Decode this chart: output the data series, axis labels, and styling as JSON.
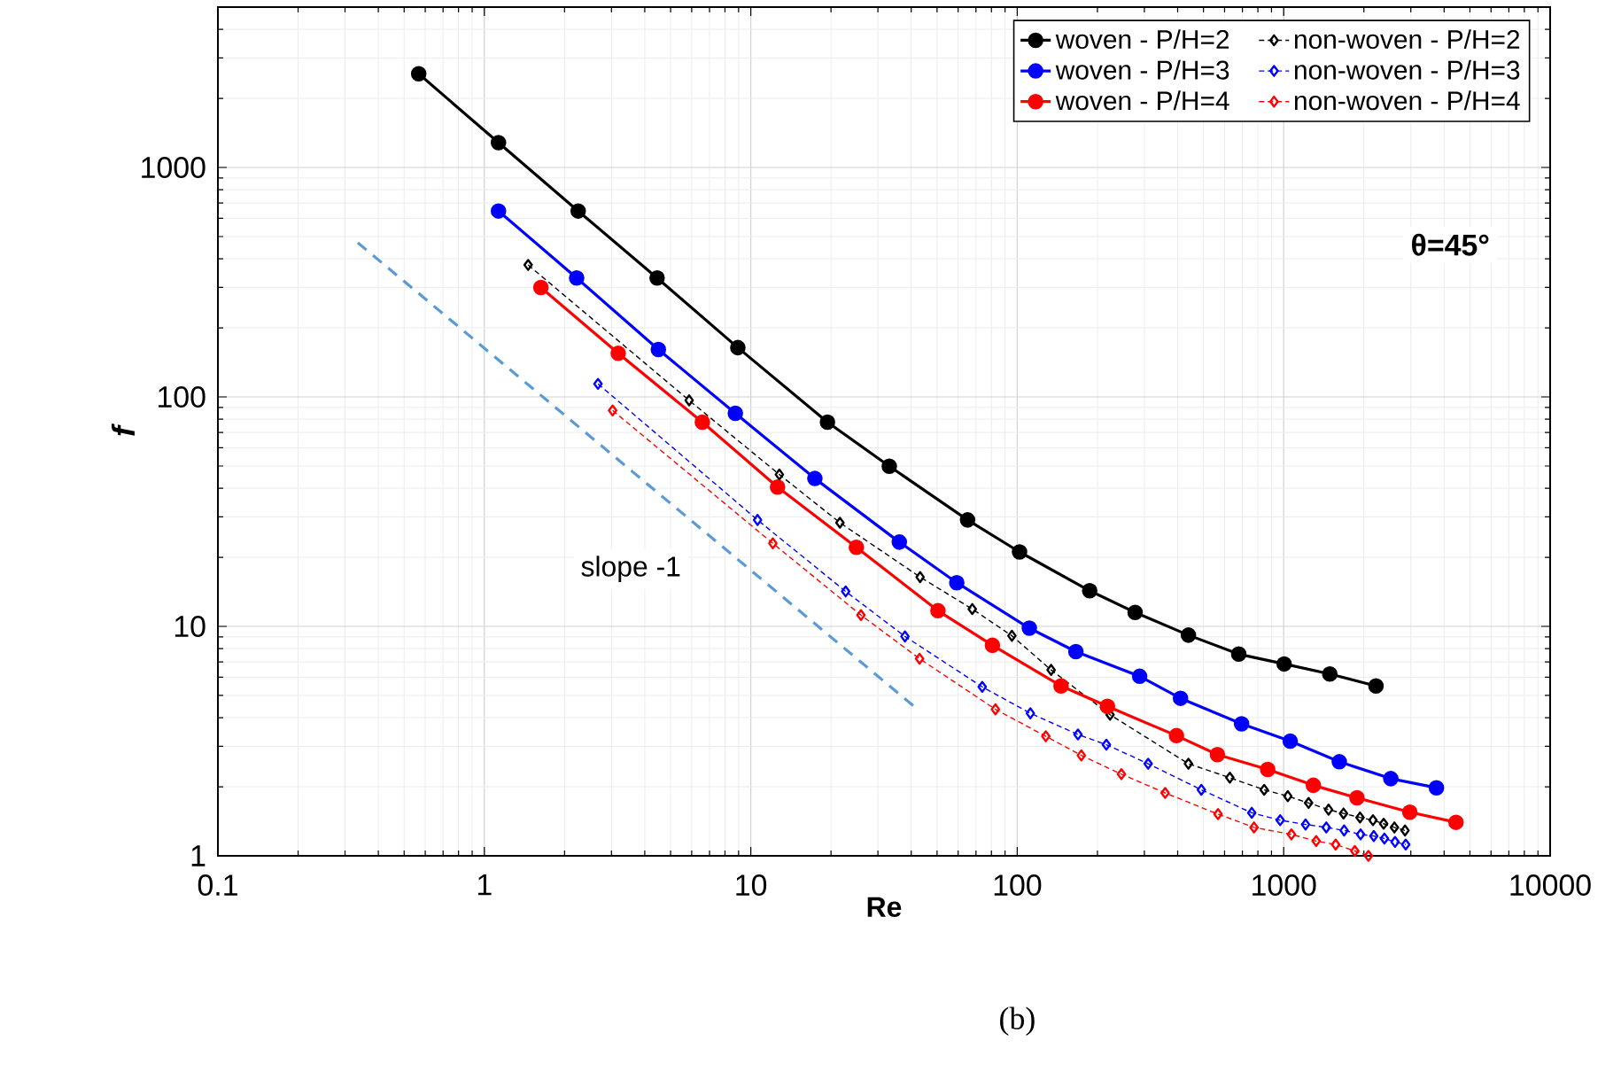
{
  "chart_data": {
    "type": "line",
    "xlabel": "Re",
    "ylabel": "f",
    "log": "xy",
    "grid": true,
    "legend": "top right",
    "xlim": [
      0.1,
      10000
    ],
    "ylim": [
      1,
      5000
    ],
    "xticks": [
      0.1,
      1,
      10,
      100,
      1000,
      10000
    ],
    "yticks": [
      1,
      10,
      100,
      1000
    ],
    "annotations": [
      "slope -1",
      "θ=45°",
      "(b)"
    ],
    "series": [
      {
        "name": "woven - P/H=2",
        "color": "#000000",
        "marker": "circle",
        "line_style": "solid",
        "x": [
          0.567,
          1.13,
          2.25,
          4.45,
          8.94,
          19.4,
          33.1,
          65.1,
          102,
          187,
          277,
          439,
          678,
          1004,
          1490,
          2220
        ],
        "values": [
          2560,
          1282,
          646,
          330,
          164,
          77.6,
          49.9,
          29.1,
          21.1,
          14.3,
          11.5,
          9.16,
          7.57,
          6.86,
          6.2,
          5.5
        ]
      },
      {
        "name": "non-woven - P/H=2",
        "color": "#000000",
        "marker": "diamond",
        "line_style": "dashed",
        "x": [
          1.46,
          5.87,
          12.8,
          21.6,
          43.2,
          67.8,
          95.5,
          134,
          223,
          439,
          628,
          845,
          1036,
          1240,
          1474,
          1677,
          1934,
          2163,
          2372,
          2603,
          2853
        ],
        "values": [
          376,
          96.6,
          45.9,
          28.3,
          16.4,
          11.9,
          9.1,
          6.46,
          4.12,
          2.52,
          2.19,
          1.94,
          1.82,
          1.7,
          1.59,
          1.53,
          1.47,
          1.43,
          1.38,
          1.33,
          1.29
        ]
      },
      {
        "name": "woven - P/H=3",
        "color": "#0000ff",
        "marker": "circle",
        "line_style": "solid",
        "x": [
          1.13,
          2.22,
          4.5,
          8.75,
          17.4,
          36.1,
          59.3,
          111,
          166,
          288,
          410,
          695,
          1058,
          1617,
          2523,
          3743
        ],
        "values": [
          646,
          330,
          161,
          84.8,
          44.1,
          23.3,
          15.5,
          9.82,
          7.76,
          6.06,
          4.86,
          3.76,
          3.16,
          2.57,
          2.17,
          1.98
        ]
      },
      {
        "name": "non-woven - P/H=3",
        "color": "#0000ff",
        "marker": "diamond",
        "line_style": "dashed",
        "x": [
          2.67,
          10.6,
          22.7,
          37.9,
          73.9,
          112,
          169,
          216,
          310,
          491,
          759,
          970,
          1208,
          1445,
          1686,
          1944,
          2178,
          2388,
          2618,
          2871
        ],
        "values": [
          114,
          29.1,
          14.2,
          9.04,
          5.45,
          4.18,
          3.38,
          3.05,
          2.52,
          1.94,
          1.54,
          1.43,
          1.37,
          1.33,
          1.29,
          1.24,
          1.22,
          1.19,
          1.15,
          1.12
        ]
      },
      {
        "name": "woven - P/H=4",
        "color": "#ff0000",
        "marker": "circle",
        "line_style": "solid",
        "x": [
          1.63,
          3.18,
          6.58,
          12.6,
          24.9,
          50.4,
          80.7,
          146,
          218,
          396,
          564,
          871,
          1292,
          1884,
          2974,
          4433
        ],
        "values": [
          300,
          155,
          77.6,
          40.5,
          22.1,
          11.7,
          8.27,
          5.5,
          4.48,
          3.34,
          2.76,
          2.38,
          2.03,
          1.79,
          1.55,
          1.4
        ]
      },
      {
        "name": "non-woven - P/H=4",
        "color": "#ff0000",
        "marker": "diamond",
        "line_style": "dashed",
        "x": [
          3.03,
          12.1,
          25.9,
          43.0,
          82.8,
          128,
          174,
          246,
          359,
          567,
          774,
          1069,
          1324,
          1567,
          1849,
          2080
        ],
        "values": [
          87.3,
          23.0,
          11.2,
          7.23,
          4.35,
          3.32,
          2.74,
          2.27,
          1.88,
          1.52,
          1.33,
          1.24,
          1.16,
          1.12,
          1.05,
          1.0
        ]
      },
      {
        "color": "#5b9bd5",
        "marker": "none",
        "line_style": "dashed",
        "x": [
          0.335,
          41.0
        ],
        "values": [
          470,
          4.48
        ]
      }
    ]
  }
}
